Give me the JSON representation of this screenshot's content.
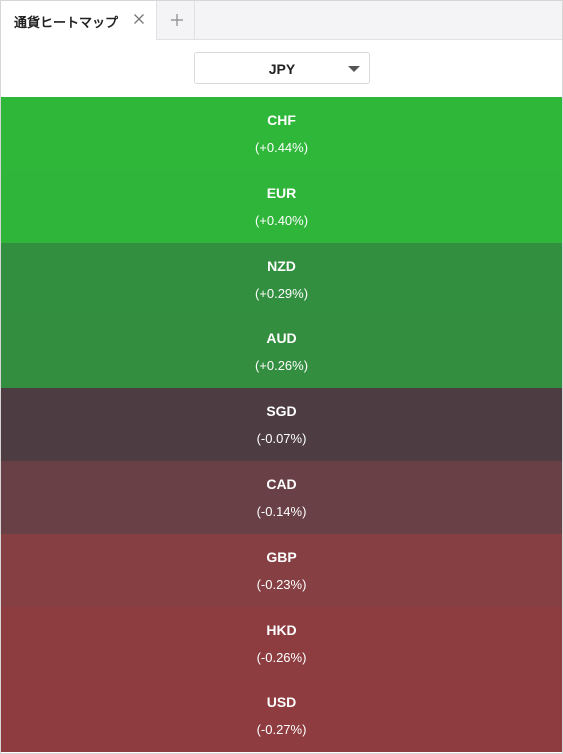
{
  "tabs": [
    {
      "label": "通貨ヒートマップ",
      "active": true
    }
  ],
  "tab_add_label": "+",
  "base_currency": {
    "selected": "JPY"
  },
  "heatmap": {
    "cells": [
      {
        "code": "CHF",
        "change": "(+0.44%)",
        "value": 0.44,
        "color": "#2fb73a"
      },
      {
        "code": "EUR",
        "change": "(+0.40%)",
        "value": 0.4,
        "color": "#2fb53a"
      },
      {
        "code": "NZD",
        "change": "(+0.29%)",
        "value": 0.29,
        "color": "#338f40"
      },
      {
        "code": "AUD",
        "change": "(+0.26%)",
        "value": 0.26,
        "color": "#348e40"
      },
      {
        "code": "SGD",
        "change": "(-0.07%)",
        "value": -0.07,
        "color": "#4d3d43"
      },
      {
        "code": "CAD",
        "change": "(-0.14%)",
        "value": -0.14,
        "color": "#684045"
      },
      {
        "code": "GBP",
        "change": "(-0.23%)",
        "value": -0.23,
        "color": "#863f42"
      },
      {
        "code": "HKD",
        "change": "(-0.26%)",
        "value": -0.26,
        "color": "#8d3d40"
      },
      {
        "code": "USD",
        "change": "(-0.27%)",
        "value": -0.27,
        "color": "#8e3c3f"
      }
    ]
  }
}
